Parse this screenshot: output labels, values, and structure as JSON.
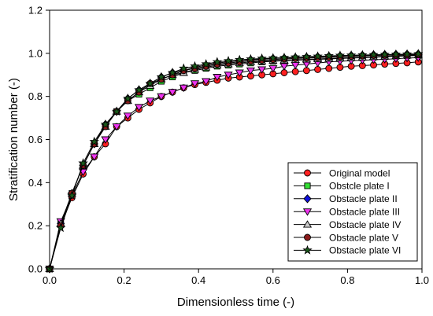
{
  "chart_data": {
    "type": "line",
    "xlabel": "Dimensionless time (-)",
    "ylabel": "Stratification number (-)",
    "xlim": [
      0,
      1.0
    ],
    "ylim": [
      0,
      1.2
    ],
    "xticks": [
      "0.0",
      "0.2",
      "0.4",
      "0.6",
      "0.8",
      "1.0"
    ],
    "yticks": [
      "0.0",
      "0.2",
      "0.4",
      "0.6",
      "0.8",
      "1.0",
      "1.2"
    ],
    "legend_position": "lower-right",
    "x": [
      0,
      0.03,
      0.06,
      0.09,
      0.12,
      0.15,
      0.18,
      0.21,
      0.24,
      0.27,
      0.3,
      0.33,
      0.36,
      0.39,
      0.42,
      0.45,
      0.48,
      0.51,
      0.54,
      0.57,
      0.6,
      0.63,
      0.66,
      0.69,
      0.72,
      0.75,
      0.78,
      0.81,
      0.84,
      0.87,
      0.9,
      0.93,
      0.96,
      0.99
    ],
    "series": [
      {
        "name": "Original model",
        "marker": "circle",
        "color": "#ff2020",
        "values": [
          0.0,
          0.2,
          0.33,
          0.44,
          0.52,
          0.58,
          0.66,
          0.7,
          0.74,
          0.77,
          0.8,
          0.82,
          0.84,
          0.855,
          0.865,
          0.875,
          0.885,
          0.89,
          0.895,
          0.9,
          0.905,
          0.91,
          0.915,
          0.92,
          0.925,
          0.93,
          0.935,
          0.94,
          0.943,
          0.946,
          0.95,
          0.953,
          0.956,
          0.96
        ]
      },
      {
        "name": "Obstcle plate I",
        "marker": "square",
        "color": "#33dd33",
        "values": [
          0.0,
          0.21,
          0.35,
          0.48,
          0.58,
          0.66,
          0.73,
          0.78,
          0.81,
          0.84,
          0.87,
          0.89,
          0.91,
          0.92,
          0.93,
          0.94,
          0.945,
          0.95,
          0.955,
          0.96,
          0.963,
          0.966,
          0.968,
          0.97,
          0.972,
          0.974,
          0.976,
          0.978,
          0.98,
          0.982,
          0.984,
          0.986,
          0.988,
          0.99
        ]
      },
      {
        "name": "Obstacle plate II",
        "marker": "diamond",
        "color": "#1010dd",
        "values": [
          0.0,
          0.21,
          0.35,
          0.48,
          0.58,
          0.67,
          0.73,
          0.79,
          0.83,
          0.86,
          0.89,
          0.91,
          0.92,
          0.935,
          0.945,
          0.955,
          0.96,
          0.965,
          0.97,
          0.973,
          0.976,
          0.978,
          0.98,
          0.982,
          0.984,
          0.986,
          0.988,
          0.99,
          0.991,
          0.993,
          0.994,
          0.995,
          0.996,
          0.997
        ]
      },
      {
        "name": "Obstacle plate III",
        "marker": "triangle-down",
        "color": "#ee33ee",
        "values": [
          0.0,
          0.22,
          0.34,
          0.45,
          0.52,
          0.6,
          0.66,
          0.71,
          0.75,
          0.78,
          0.8,
          0.82,
          0.84,
          0.86,
          0.87,
          0.89,
          0.9,
          0.91,
          0.92,
          0.925,
          0.93,
          0.94,
          0.945,
          0.95,
          0.955,
          0.96,
          0.963,
          0.966,
          0.968,
          0.97,
          0.972,
          0.975,
          0.978,
          0.98
        ]
      },
      {
        "name": "Obstacle plate IV",
        "marker": "triangle-up",
        "color": "#cccccc",
        "values": [
          0.0,
          0.21,
          0.35,
          0.48,
          0.58,
          0.66,
          0.73,
          0.78,
          0.82,
          0.85,
          0.88,
          0.9,
          0.91,
          0.925,
          0.935,
          0.945,
          0.95,
          0.955,
          0.96,
          0.963,
          0.966,
          0.968,
          0.97,
          0.972,
          0.974,
          0.976,
          0.978,
          0.98,
          0.982,
          0.984,
          0.986,
          0.988,
          0.99,
          0.992
        ]
      },
      {
        "name": "Obstacle plate V",
        "marker": "circle",
        "color": "#8b1a1a",
        "values": [
          0.0,
          0.2,
          0.35,
          0.48,
          0.58,
          0.66,
          0.73,
          0.78,
          0.82,
          0.86,
          0.88,
          0.9,
          0.92,
          0.93,
          0.94,
          0.95,
          0.955,
          0.96,
          0.965,
          0.968,
          0.971,
          0.974,
          0.976,
          0.978,
          0.98,
          0.982,
          0.984,
          0.986,
          0.988,
          0.99,
          0.991,
          0.992,
          0.993,
          0.994
        ]
      },
      {
        "name": "Obstacle plate VI",
        "marker": "star",
        "color": "#1a5a1a",
        "values": [
          0.0,
          0.19,
          0.34,
          0.49,
          0.59,
          0.67,
          0.73,
          0.79,
          0.83,
          0.86,
          0.89,
          0.91,
          0.93,
          0.94,
          0.95,
          0.96,
          0.965,
          0.97,
          0.973,
          0.976,
          0.978,
          0.98,
          0.982,
          0.984,
          0.986,
          0.988,
          0.99,
          0.991,
          0.992,
          0.993,
          0.994,
          0.995,
          0.996,
          0.997
        ]
      }
    ]
  }
}
